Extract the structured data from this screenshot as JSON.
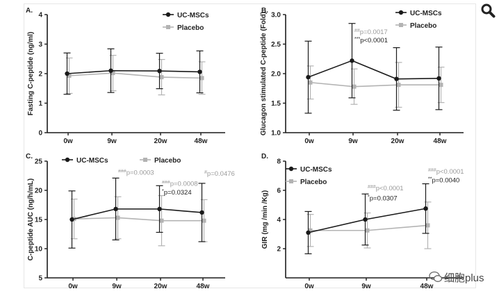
{
  "colors": {
    "uc": "#1a1a1a",
    "placebo": "#b3b3b3",
    "axis": "#1a1a1a"
  },
  "watermark": {
    "text": "细胞plus",
    "icon": "wechat-bubble-icon"
  },
  "toolbar": {
    "icon": "magnifier-icon"
  },
  "chart_data": [
    {
      "id": "A",
      "type": "line",
      "panel_label": "A.",
      "title": "",
      "ylabel": "Fasting C-peptide (ng/ml)",
      "xlabel": "",
      "categories": [
        "0w",
        "9w",
        "20w",
        "48w"
      ],
      "ylim": [
        0,
        4
      ],
      "yticks": [
        0,
        1,
        2,
        3,
        4
      ],
      "legend_position": "top-right",
      "series": [
        {
          "name": "UC-MSCs",
          "values": [
            2.0,
            2.1,
            2.09,
            2.06
          ],
          "err_up": [
            0.7,
            0.74,
            0.6,
            0.71
          ],
          "err_down": [
            0.7,
            0.74,
            0.6,
            0.71
          ]
        },
        {
          "name": "Placebo",
          "values": [
            1.93,
            2.02,
            1.88,
            1.85
          ],
          "err_up": [
            0.6,
            0.6,
            0.6,
            0.55
          ],
          "err_down": [
            0.6,
            0.6,
            0.6,
            0.55
          ]
        }
      ],
      "annotations": []
    },
    {
      "id": "B",
      "type": "line",
      "panel_label": "B.",
      "title": "",
      "ylabel": "Glucagon stimulated C-peptide (Fold)",
      "xlabel": "",
      "categories": [
        "0w",
        "9w",
        "20w",
        "48w"
      ],
      "ylim": [
        1.0,
        3.0
      ],
      "yticks": [
        1.0,
        1.5,
        2.0,
        2.5,
        3.0
      ],
      "legend_position": "top-right",
      "series": [
        {
          "name": "UC-MSCs",
          "values": [
            1.94,
            2.22,
            1.91,
            1.92
          ],
          "err_up": [
            0.61,
            0.63,
            0.53,
            0.53
          ],
          "err_down": [
            0.61,
            0.63,
            0.53,
            0.53
          ]
        },
        {
          "name": "Placebo",
          "values": [
            1.85,
            1.78,
            1.81,
            1.81
          ],
          "err_up": [
            0.28,
            0.3,
            0.38,
            0.3
          ],
          "err_down": [
            0.28,
            0.3,
            0.38,
            0.3
          ]
        }
      ],
      "annotations": [
        {
          "x_index": 1,
          "y_value": 2.67,
          "prefix": "##",
          "text": "p=0.0017",
          "style": "grey"
        },
        {
          "x_index": 1,
          "y_value": 2.53,
          "prefix": "***",
          "text": "p<0.0001",
          "style": "black"
        }
      ]
    },
    {
      "id": "C",
      "type": "line",
      "panel_label": "C.",
      "title": "",
      "ylabel": "C-peptide AUC (ng/h/mL)",
      "xlabel": "",
      "categories": [
        "0w",
        "9w",
        "20w",
        "48w"
      ],
      "ylim": [
        5,
        25
      ],
      "yticks": [
        5,
        10,
        15,
        20,
        25
      ],
      "legend_position": "top",
      "series": [
        {
          "name": "UC-MSCs",
          "values": [
            15.0,
            16.8,
            16.8,
            16.2
          ],
          "err_up": [
            4.9,
            5.3,
            4.0,
            5.0
          ],
          "err_down": [
            4.9,
            5.3,
            4.0,
            5.0
          ]
        },
        {
          "name": "Placebo",
          "values": [
            15.1,
            15.3,
            14.8,
            14.8
          ],
          "err_up": [
            3.4,
            3.6,
            4.3,
            3.6
          ],
          "err_down": [
            3.4,
            3.6,
            4.3,
            3.6
          ]
        }
      ],
      "annotations": [
        {
          "x_index": 1,
          "y_value": 22.7,
          "prefix": "###",
          "text": "p=0.0003",
          "style": "grey"
        },
        {
          "x_index": 2,
          "y_value": 20.8,
          "prefix": "###",
          "text": "p=0.0008",
          "style": "grey"
        },
        {
          "x_index": 2,
          "y_value": 19.3,
          "prefix": "*",
          "text": "p=0.0324",
          "style": "black"
        },
        {
          "x_index": 3,
          "y_value": 22.5,
          "prefix": "#",
          "text": "p=0.0476",
          "style": "grey"
        }
      ]
    },
    {
      "id": "D",
      "type": "line",
      "panel_label": "D.",
      "title": "",
      "ylabel": "GIR (mg /min /Kg)",
      "xlabel": "",
      "categories": [
        "0w",
        "9w",
        "48w"
      ],
      "ylim": [
        0,
        8
      ],
      "yticks": [
        2,
        4,
        6,
        8
      ],
      "legend_position": "top-left",
      "series": [
        {
          "name": "UC-MSCs",
          "values": [
            3.1,
            4.0,
            4.75
          ],
          "err_up": [
            1.45,
            1.75,
            1.7
          ],
          "err_down": [
            1.45,
            1.75,
            1.7
          ]
        },
        {
          "name": "Placebo",
          "values": [
            3.25,
            3.25,
            3.6
          ],
          "err_up": [
            1.1,
            1.2,
            1.6
          ],
          "err_down": [
            1.1,
            1.2,
            1.6
          ]
        }
      ],
      "annotations": [
        {
          "x_index": 1,
          "y_value": 6.0,
          "prefix": "###",
          "text": "p<0.0001",
          "style": "grey"
        },
        {
          "x_index": 1,
          "y_value": 5.3,
          "prefix": "*",
          "text": "p=0.0307",
          "style": "black"
        },
        {
          "x_index": 2,
          "y_value": 7.15,
          "prefix": "###",
          "text": "p<0.0001",
          "style": "grey"
        },
        {
          "x_index": 2,
          "y_value": 6.55,
          "prefix": "**",
          "text": "p=0.0040",
          "style": "black"
        }
      ]
    }
  ]
}
